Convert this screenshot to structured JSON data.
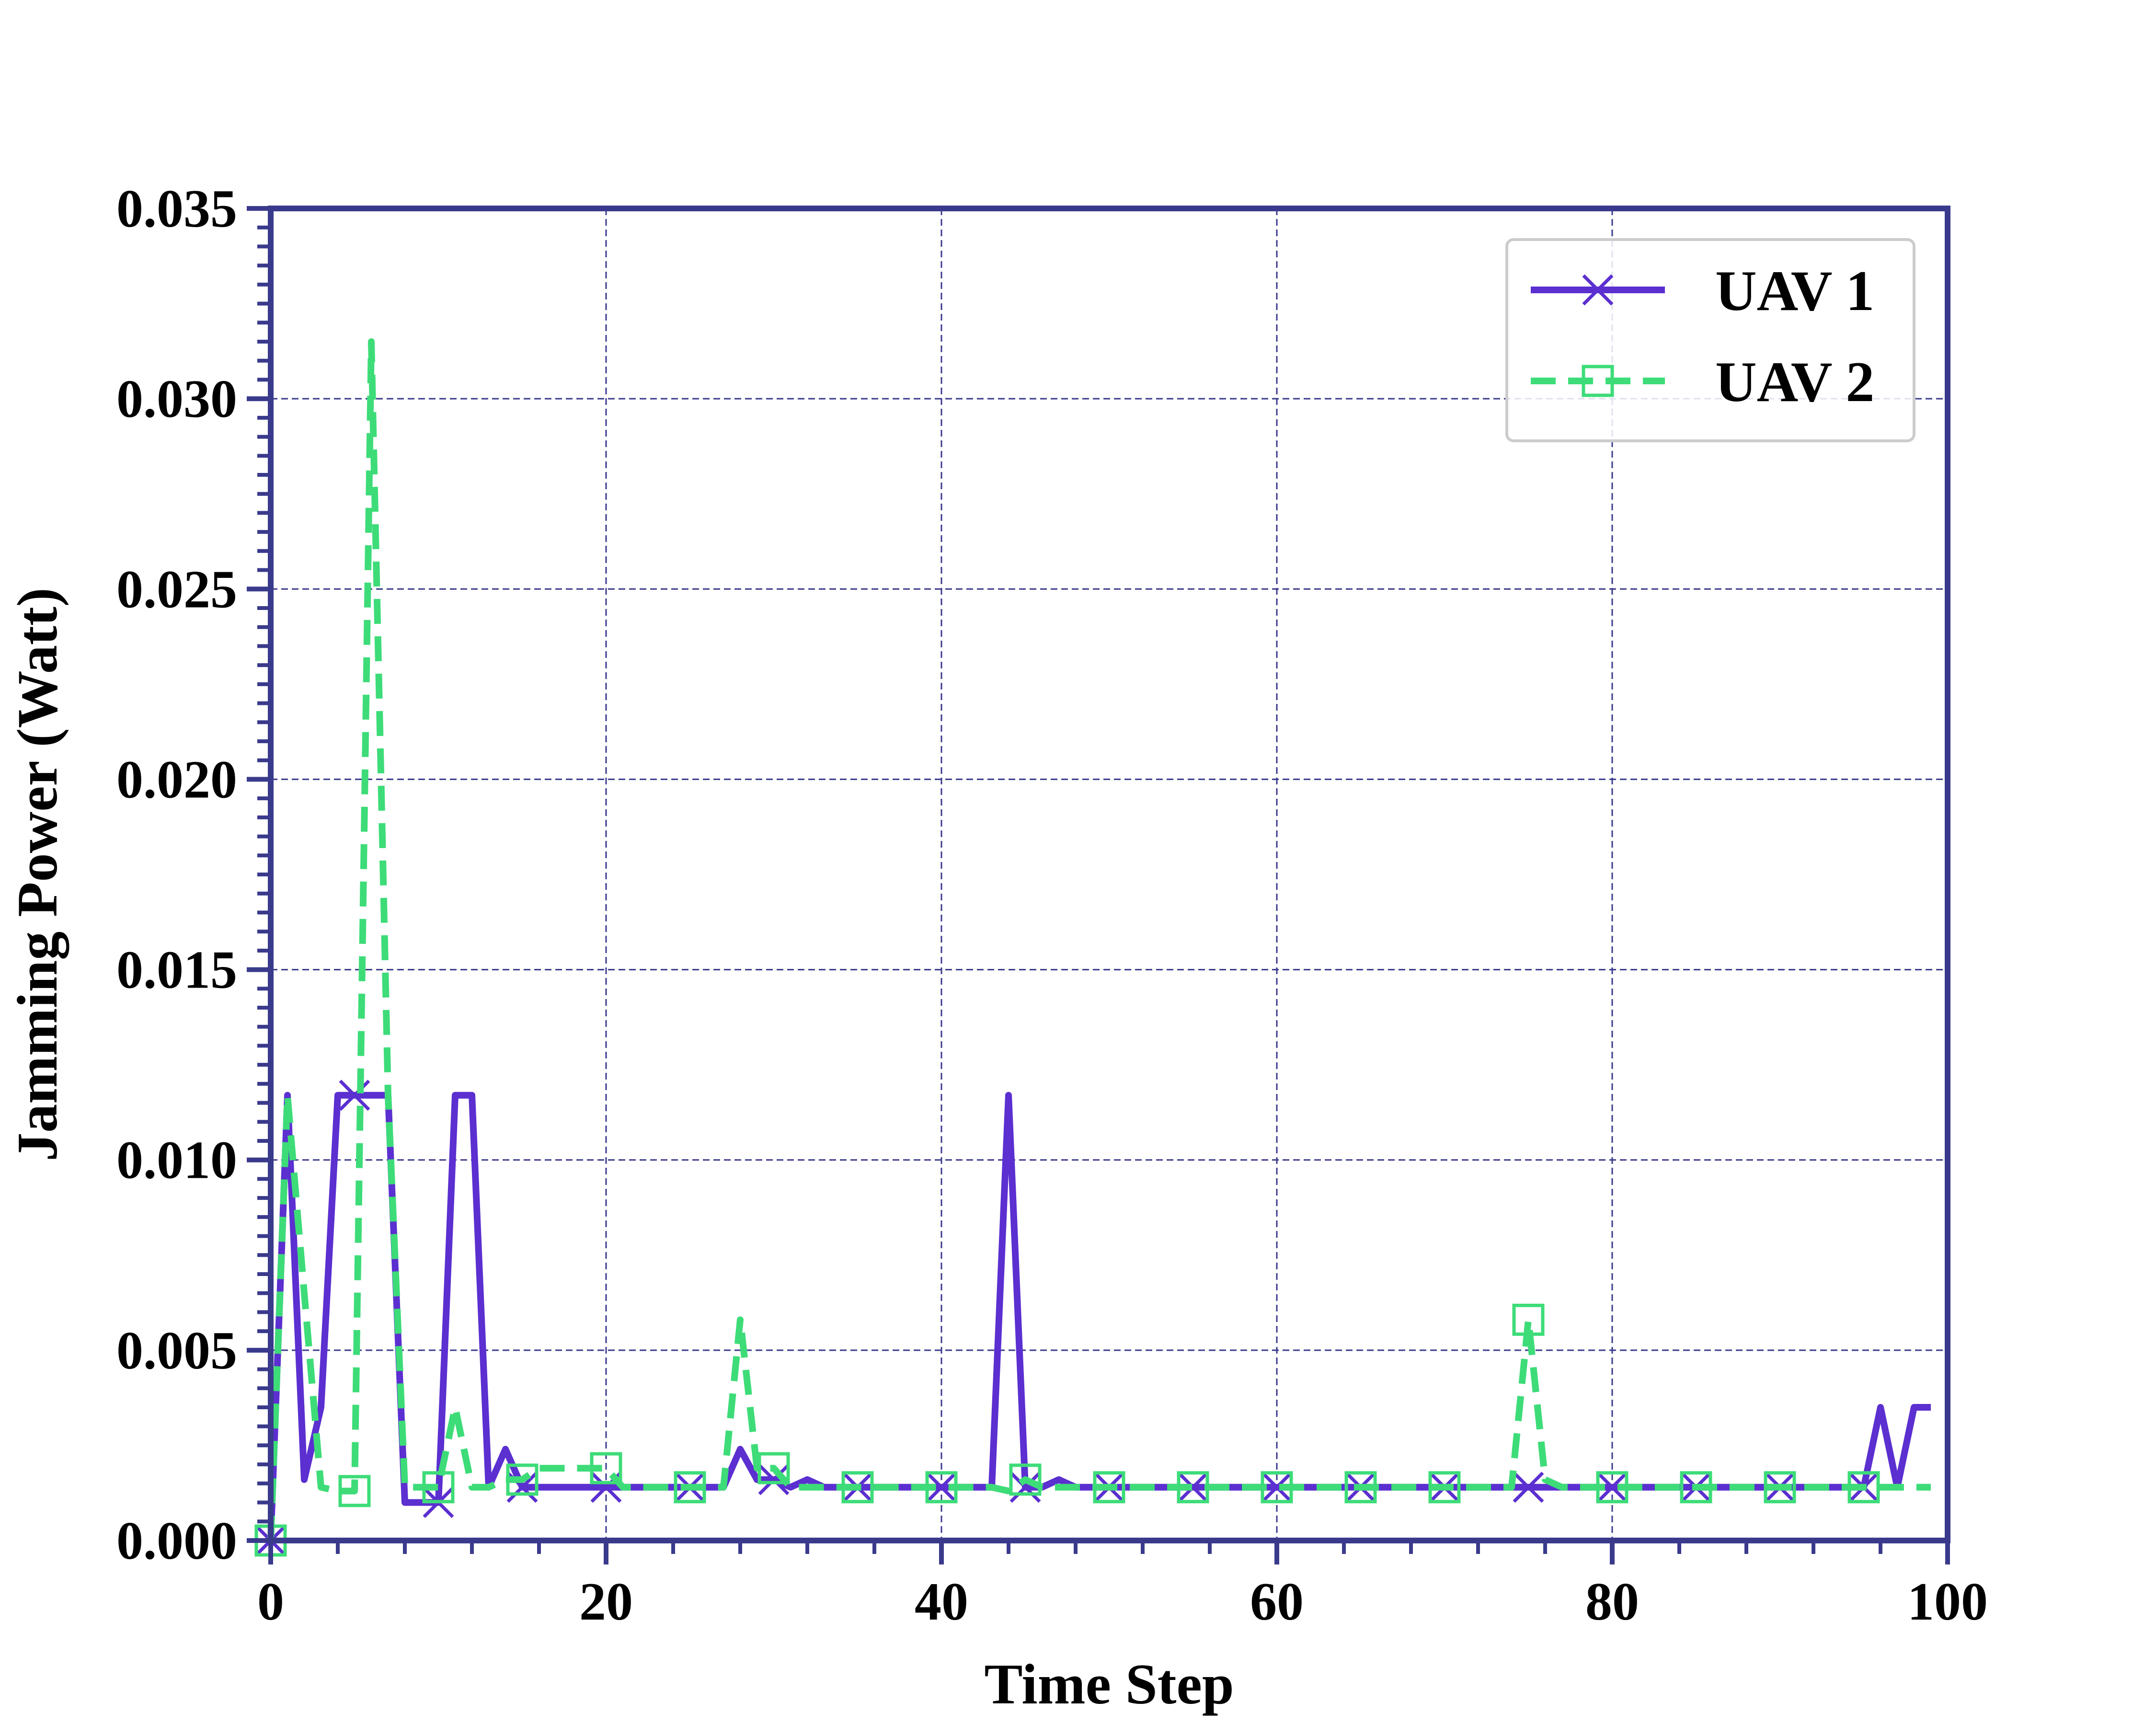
{
  "chart_data": {
    "type": "line",
    "title": "",
    "xlabel": "Time Step",
    "ylabel": "Jamming Power (Watt)",
    "xlim": [
      0,
      100
    ],
    "ylim": [
      0,
      0.035
    ],
    "xticks": [
      0,
      20,
      40,
      60,
      80,
      100
    ],
    "xtick_labels": [
      "0",
      "20",
      "40",
      "60",
      "80",
      "100"
    ],
    "yticks": [
      0,
      0.005,
      0.01,
      0.015,
      0.02,
      0.025,
      0.03,
      0.035
    ],
    "ytick_labels": [
      "0.000",
      "0.005",
      "0.010",
      "0.015",
      "0.020",
      "0.025",
      "0.030",
      "0.035"
    ],
    "grid": true,
    "legend_position": "top-right",
    "colors": {
      "axis": "#3a3a8c",
      "grid": "#3a3a8c"
    },
    "series": [
      {
        "name": "UAV 1",
        "color": "#5b2fd0",
        "line_style": "solid",
        "marker": "x",
        "marker_every": 5,
        "x": [
          0,
          1,
          2,
          3,
          4,
          5,
          6,
          7,
          8,
          9,
          10,
          11,
          12,
          13,
          14,
          15,
          16,
          17,
          18,
          19,
          20,
          21,
          22,
          23,
          24,
          25,
          26,
          27,
          28,
          29,
          30,
          31,
          32,
          33,
          34,
          35,
          36,
          37,
          38,
          39,
          40,
          41,
          42,
          43,
          44,
          45,
          46,
          47,
          48,
          49,
          50,
          51,
          52,
          53,
          54,
          55,
          56,
          57,
          58,
          59,
          60,
          61,
          62,
          63,
          64,
          65,
          66,
          67,
          68,
          69,
          70,
          71,
          72,
          73,
          74,
          75,
          76,
          77,
          78,
          79,
          80,
          81,
          82,
          83,
          84,
          85,
          86,
          87,
          88,
          89,
          90,
          91,
          92,
          93,
          94,
          95,
          96,
          97,
          98,
          99
        ],
        "y": [
          0.0,
          0.0117,
          0.0016,
          0.0035,
          0.0117,
          0.0117,
          0.0117,
          0.0117,
          0.001,
          0.001,
          0.001,
          0.0117,
          0.0117,
          0.0014,
          0.0024,
          0.0014,
          0.0014,
          0.0014,
          0.0014,
          0.0014,
          0.0014,
          0.0014,
          0.0014,
          0.0014,
          0.0014,
          0.0014,
          0.0014,
          0.0014,
          0.0024,
          0.0016,
          0.0016,
          0.0014,
          0.0016,
          0.0014,
          0.0014,
          0.0014,
          0.0014,
          0.0014,
          0.0014,
          0.0014,
          0.0014,
          0.0014,
          0.0014,
          0.0014,
          0.0117,
          0.0014,
          0.0014,
          0.0016,
          0.0014,
          0.0014,
          0.0014,
          0.0014,
          0.0014,
          0.0014,
          0.0014,
          0.0014,
          0.0014,
          0.0014,
          0.0014,
          0.0014,
          0.0014,
          0.0014,
          0.0014,
          0.0014,
          0.0014,
          0.0014,
          0.0014,
          0.0014,
          0.0014,
          0.0014,
          0.0014,
          0.0014,
          0.0014,
          0.0014,
          0.0014,
          0.0014,
          0.0014,
          0.0014,
          0.0014,
          0.0014,
          0.0014,
          0.0014,
          0.0014,
          0.0014,
          0.0014,
          0.0014,
          0.0014,
          0.0014,
          0.0014,
          0.0014,
          0.0014,
          0.0014,
          0.0014,
          0.0014,
          0.0014,
          0.0014,
          0.0035,
          0.0014,
          0.0035,
          0.0035
        ]
      },
      {
        "name": "UAV 2",
        "color": "#3ddc78",
        "line_style": "dashed",
        "marker": "square",
        "marker_every": 5,
        "x": [
          0,
          1,
          2,
          3,
          4,
          5,
          6,
          7,
          8,
          9,
          10,
          11,
          12,
          13,
          14,
          15,
          16,
          17,
          18,
          19,
          20,
          21,
          22,
          23,
          24,
          25,
          26,
          27,
          28,
          29,
          30,
          31,
          32,
          33,
          34,
          35,
          36,
          37,
          38,
          39,
          40,
          41,
          42,
          43,
          44,
          45,
          46,
          47,
          48,
          49,
          50,
          51,
          52,
          53,
          54,
          55,
          56,
          57,
          58,
          59,
          60,
          61,
          62,
          63,
          64,
          65,
          66,
          67,
          68,
          69,
          70,
          71,
          72,
          73,
          74,
          75,
          76,
          77,
          78,
          79,
          80,
          81,
          82,
          83,
          84,
          85,
          86,
          87,
          88,
          89,
          90,
          91,
          92,
          93,
          94,
          95,
          96,
          97,
          98,
          99
        ],
        "y": [
          0.0,
          0.0117,
          0.0065,
          0.0014,
          0.0013,
          0.0013,
          0.0315,
          0.0117,
          0.0014,
          0.0014,
          0.0014,
          0.0035,
          0.0014,
          0.0014,
          0.0016,
          0.0016,
          0.0019,
          0.0019,
          0.0019,
          0.0019,
          0.0019,
          0.0014,
          0.0014,
          0.0014,
          0.0014,
          0.0014,
          0.0014,
          0.0014,
          0.0058,
          0.0019,
          0.0019,
          0.0014,
          0.0014,
          0.0014,
          0.0014,
          0.0014,
          0.0014,
          0.0014,
          0.0014,
          0.0014,
          0.0014,
          0.0014,
          0.0014,
          0.0014,
          0.0013,
          0.0016,
          0.0014,
          0.0014,
          0.0014,
          0.0014,
          0.0014,
          0.0014,
          0.0014,
          0.0014,
          0.0014,
          0.0014,
          0.0014,
          0.0014,
          0.0014,
          0.0014,
          0.0014,
          0.0014,
          0.0014,
          0.0014,
          0.0014,
          0.0014,
          0.0014,
          0.0014,
          0.0014,
          0.0014,
          0.0014,
          0.0014,
          0.0014,
          0.0014,
          0.0014,
          0.0058,
          0.0016,
          0.0014,
          0.0014,
          0.0014,
          0.0014,
          0.0014,
          0.0014,
          0.0014,
          0.0014,
          0.0014,
          0.0014,
          0.0014,
          0.0014,
          0.0014,
          0.0014,
          0.0014,
          0.0014,
          0.0014,
          0.0014,
          0.0014,
          0.0014,
          0.0014,
          0.0014,
          0.0014
        ]
      }
    ]
  }
}
